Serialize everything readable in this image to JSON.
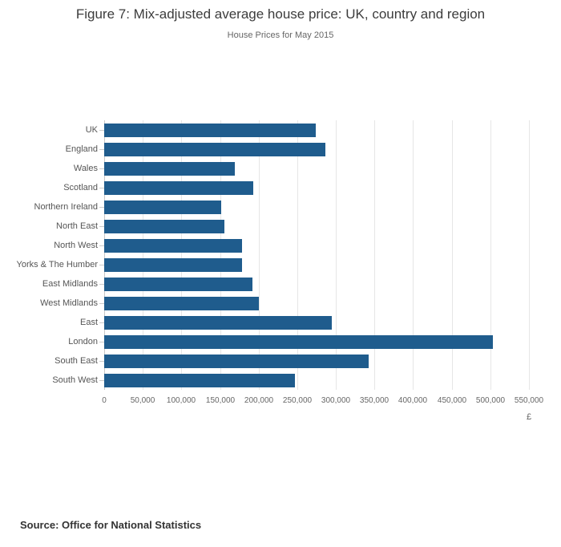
{
  "chart_data": {
    "type": "bar",
    "orientation": "horizontal",
    "title": "Figure 7: Mix-adjusted average house price: UK, country and region",
    "subtitle": "House Prices for May 2015",
    "categories": [
      "UK",
      "England",
      "Wales",
      "Scotland",
      "Northern Ireland",
      "North East",
      "North West",
      "Yorks & The Humber",
      "East Midlands",
      "West Midlands",
      "East",
      "London",
      "South East",
      "South West"
    ],
    "values": [
      274000,
      286000,
      169000,
      193000,
      152000,
      156000,
      178000,
      178000,
      192000,
      200000,
      295000,
      503000,
      342000,
      247000
    ],
    "xlabel": "£",
    "xlim": [
      0,
      550000
    ],
    "xticks": [
      0,
      50000,
      100000,
      150000,
      200000,
      250000,
      300000,
      350000,
      400000,
      450000,
      500000,
      550000
    ],
    "xtick_labels": [
      "0",
      "50,000",
      "100,000",
      "150,000",
      "200,000",
      "250,000",
      "300,000",
      "350,000",
      "400,000",
      "450,000",
      "500,000",
      "550,000"
    ],
    "bar_color": "#1f5c8d",
    "gridlines": true,
    "legend": "none"
  },
  "footer": {
    "source": "Source: Office for National Statistics"
  }
}
